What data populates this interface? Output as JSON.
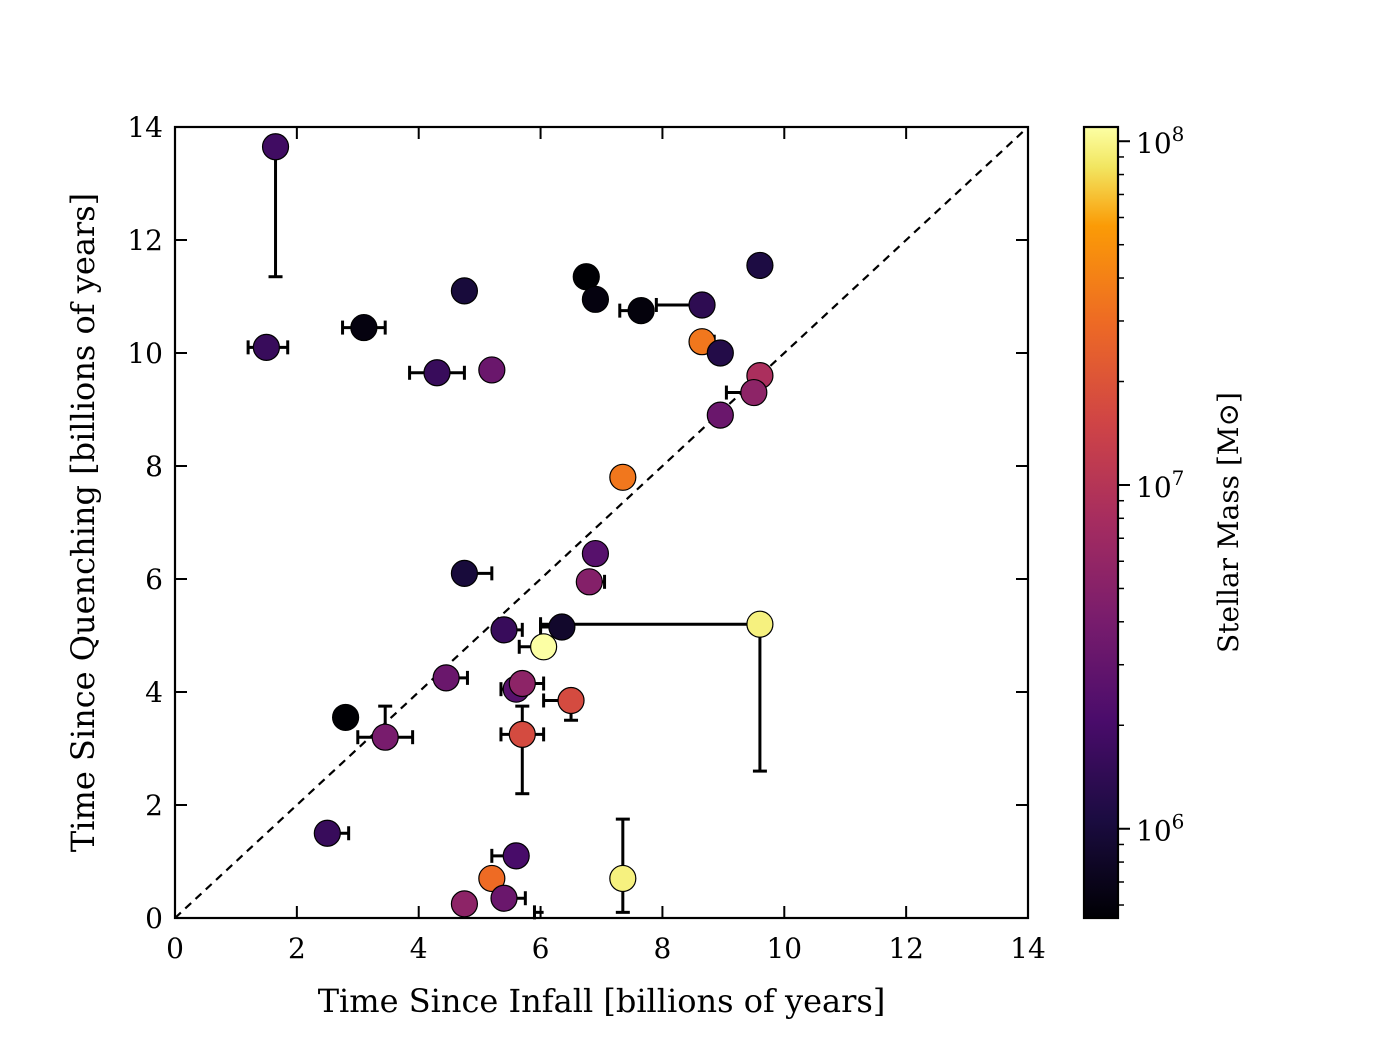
{
  "chart_data": {
    "type": "scatter",
    "xlabel": "Time Since Infall [billions of years]",
    "ylabel": "Time Since Quenching [billions of years]",
    "xlim": [
      0,
      14
    ],
    "ylim": [
      0,
      14
    ],
    "xticks": [
      "0",
      "2",
      "4",
      "6",
      "8",
      "10",
      "12",
      "14"
    ],
    "yticks": [
      "0",
      "2",
      "4",
      "6",
      "8",
      "10",
      "12",
      "14"
    ],
    "reference_line": "y = x (dashed)",
    "grid": false,
    "colorbar": {
      "label": "Stellar Mass [M⊙]",
      "scale": "log",
      "range": [
        550000,
        110000000
      ],
      "colormap": "inferno",
      "ticks": [
        {
          "value": 1000000,
          "base": "10",
          "exp": "6"
        },
        {
          "value": 10000000,
          "base": "10",
          "exp": "7"
        },
        {
          "value": 100000000,
          "base": "10",
          "exp": "8"
        }
      ]
    },
    "points": [
      {
        "x": 1.65,
        "y": 13.65,
        "mass": 1800000,
        "yerr": [
          2.3,
          0
        ]
      },
      {
        "x": 1.5,
        "y": 10.1,
        "mass": 1600000,
        "xerr": [
          0.3,
          0.35
        ]
      },
      {
        "x": 3.1,
        "y": 10.45,
        "mass": 620000,
        "xerr": [
          0.35,
          0.35
        ]
      },
      {
        "x": 4.75,
        "y": 11.1,
        "mass": 1000000
      },
      {
        "x": 4.3,
        "y": 9.65,
        "mass": 1600000,
        "xerr": [
          0.45,
          0.45
        ]
      },
      {
        "x": 5.2,
        "y": 9.7,
        "mass": 3300000
      },
      {
        "x": 6.75,
        "y": 11.35,
        "mass": 550000
      },
      {
        "x": 6.9,
        "y": 10.95,
        "mass": 620000
      },
      {
        "x": 7.65,
        "y": 10.75,
        "mass": 600000,
        "xerr": [
          0.35,
          0
        ]
      },
      {
        "x": 8.65,
        "y": 10.85,
        "mass": 1400000,
        "xerr": [
          0.75,
          0
        ]
      },
      {
        "x": 9.6,
        "y": 11.55,
        "mass": 1100000
      },
      {
        "x": 8.65,
        "y": 10.2,
        "mass": 35000000,
        "xerr": [
          0,
          0.2
        ]
      },
      {
        "x": 8.95,
        "y": 10.0,
        "mass": 1200000
      },
      {
        "x": 9.6,
        "y": 9.6,
        "mass": 8500000
      },
      {
        "x": 9.5,
        "y": 9.3,
        "mass": 5500000,
        "xerr": [
          0.45,
          0
        ]
      },
      {
        "x": 8.95,
        "y": 8.9,
        "mass": 3300000
      },
      {
        "x": 7.35,
        "y": 7.8,
        "mass": 35000000
      },
      {
        "x": 4.75,
        "y": 6.1,
        "mass": 1000000,
        "xerr": [
          0,
          0.45
        ]
      },
      {
        "x": 6.9,
        "y": 6.45,
        "mass": 2500000
      },
      {
        "x": 6.8,
        "y": 5.95,
        "mass": 4800000,
        "xerr": [
          0,
          0.25
        ]
      },
      {
        "x": 5.4,
        "y": 5.1,
        "mass": 1600000,
        "xerr": [
          0,
          0.3
        ]
      },
      {
        "x": 6.35,
        "y": 5.15,
        "mass": 850000,
        "xerr": [
          0.35,
          0
        ]
      },
      {
        "x": 9.6,
        "y": 5.2,
        "mass": 95000000,
        "xerr": [
          3.6,
          0
        ],
        "yerr": [
          2.6,
          0
        ]
      },
      {
        "x": 6.05,
        "y": 4.8,
        "mass": 110000000,
        "xerr": [
          0.4,
          0
        ]
      },
      {
        "x": 4.45,
        "y": 4.25,
        "mass": 3300000,
        "xerr": [
          0,
          0.35
        ]
      },
      {
        "x": 5.6,
        "y": 4.05,
        "mass": 2500000,
        "xerr": [
          0.25,
          0
        ]
      },
      {
        "x": 5.7,
        "y": 4.15,
        "mass": 5500000,
        "xerr": [
          0,
          0.35
        ]
      },
      {
        "x": 6.5,
        "y": 3.85,
        "mass": 17000000,
        "xerr": [
          0.45,
          0
        ],
        "yerr": [
          0.35,
          0
        ]
      },
      {
        "x": 2.8,
        "y": 3.55,
        "mass": 550000
      },
      {
        "x": 3.45,
        "y": 3.2,
        "mass": 4000000,
        "xerr": [
          0.45,
          0.45
        ],
        "yerr": [
          0,
          0.55
        ]
      },
      {
        "x": 5.7,
        "y": 3.25,
        "mass": 17000000,
        "xerr": [
          0.35,
          0.35
        ],
        "yerr": [
          1.05,
          0.5
        ]
      },
      {
        "x": 2.5,
        "y": 1.5,
        "mass": 1600000,
        "xerr": [
          0,
          0.35
        ]
      },
      {
        "x": 5.6,
        "y": 1.1,
        "mass": 2000000,
        "xerr": [
          0.4,
          0
        ]
      },
      {
        "x": 7.35,
        "y": 0.7,
        "mass": 95000000,
        "yerr": [
          0.6,
          1.05
        ]
      },
      {
        "x": 5.2,
        "y": 0.7,
        "mass": 30000000
      },
      {
        "x": 4.75,
        "y": 0.25,
        "mass": 5500000
      },
      {
        "x": 5.4,
        "y": 0.35,
        "mass": 3300000,
        "xerr": [
          0,
          0.35
        ]
      },
      {
        "x": 6.05,
        "y": 0.1,
        "mass": 0,
        "marker": false,
        "xerr": [
          0.15,
          0
        ]
      }
    ]
  }
}
